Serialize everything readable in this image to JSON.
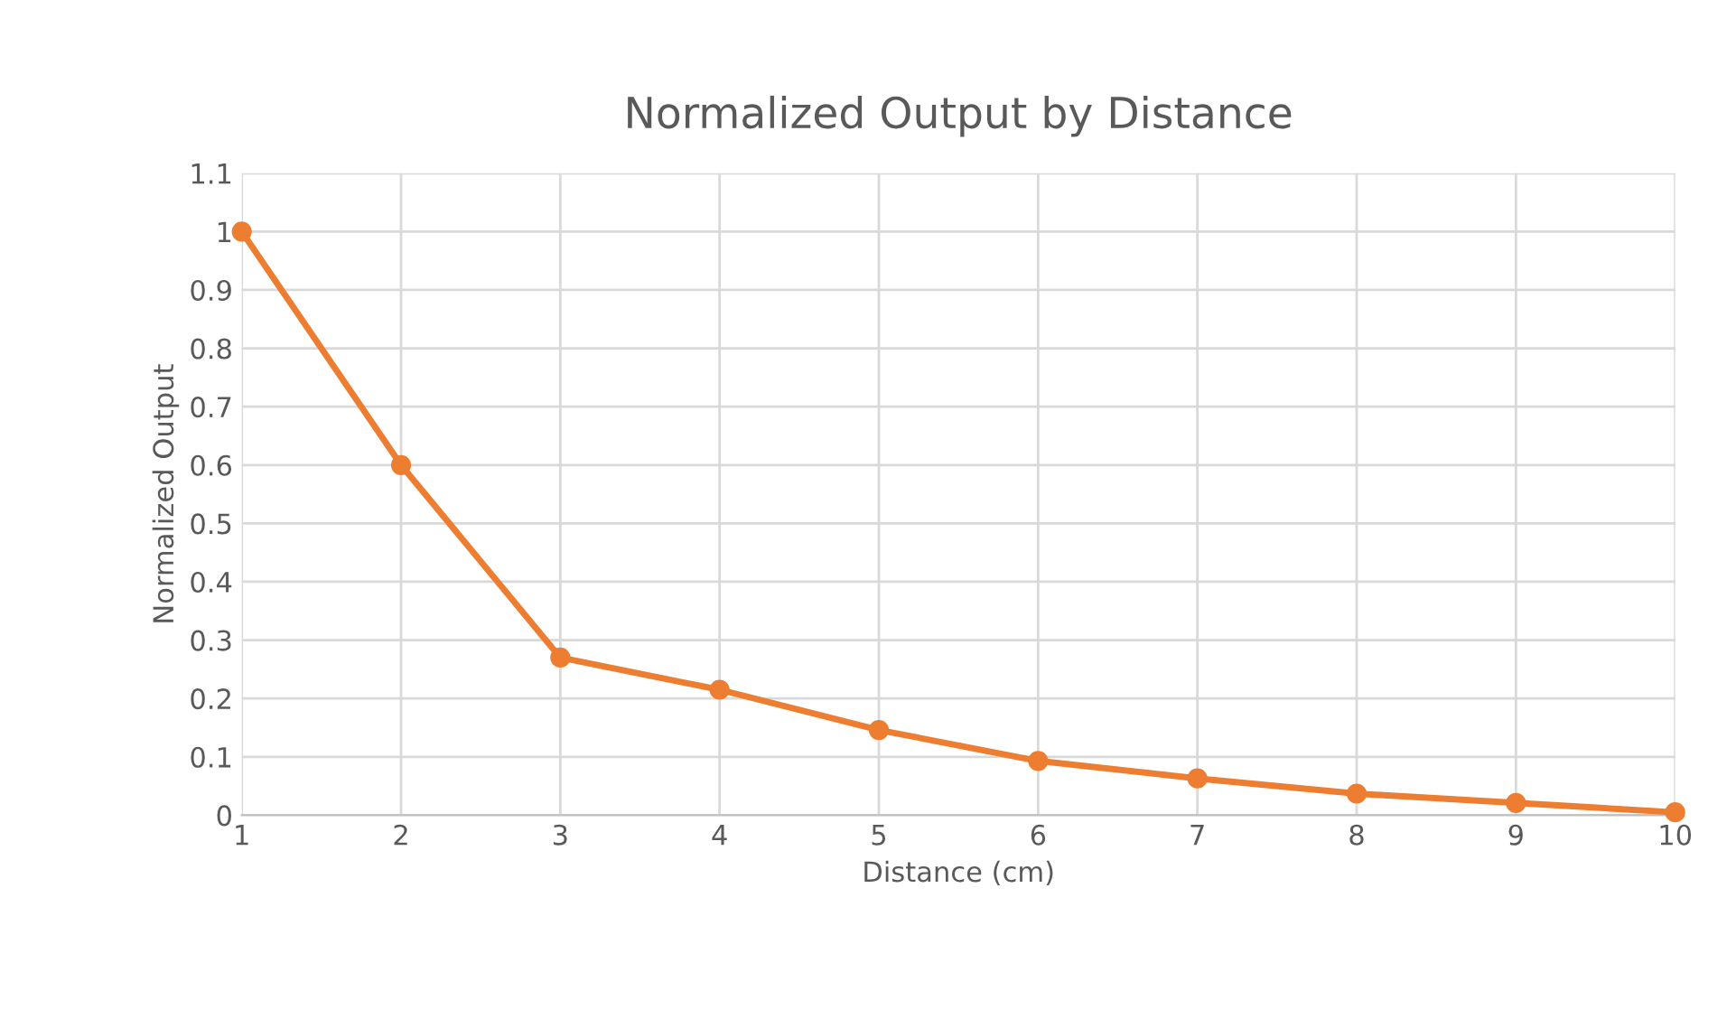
{
  "chart_data": {
    "type": "line",
    "title": "Normalized Output by Distance",
    "xlabel": "Distance (cm)",
    "ylabel": "Normalized Output",
    "x": [
      1,
      2,
      3,
      4,
      5,
      6,
      7,
      8,
      9,
      10
    ],
    "series": [
      {
        "color": "#ed7d31",
        "values": [
          1.0,
          0.6,
          0.27,
          0.215,
          0.146,
          0.093,
          0.063,
          0.037,
          0.021,
          0.005
        ]
      }
    ],
    "xlim": [
      1,
      10
    ],
    "xticks": [
      1,
      2,
      3,
      4,
      5,
      6,
      7,
      8,
      9,
      10
    ],
    "ylim": [
      0,
      1.1
    ],
    "yticks": [
      0,
      0.1,
      0.2,
      0.3,
      0.4,
      0.5,
      0.6,
      0.7,
      0.8,
      0.9,
      1,
      1.1
    ],
    "grid": true,
    "marker": "circle",
    "line_style": "solid",
    "legend": false
  }
}
